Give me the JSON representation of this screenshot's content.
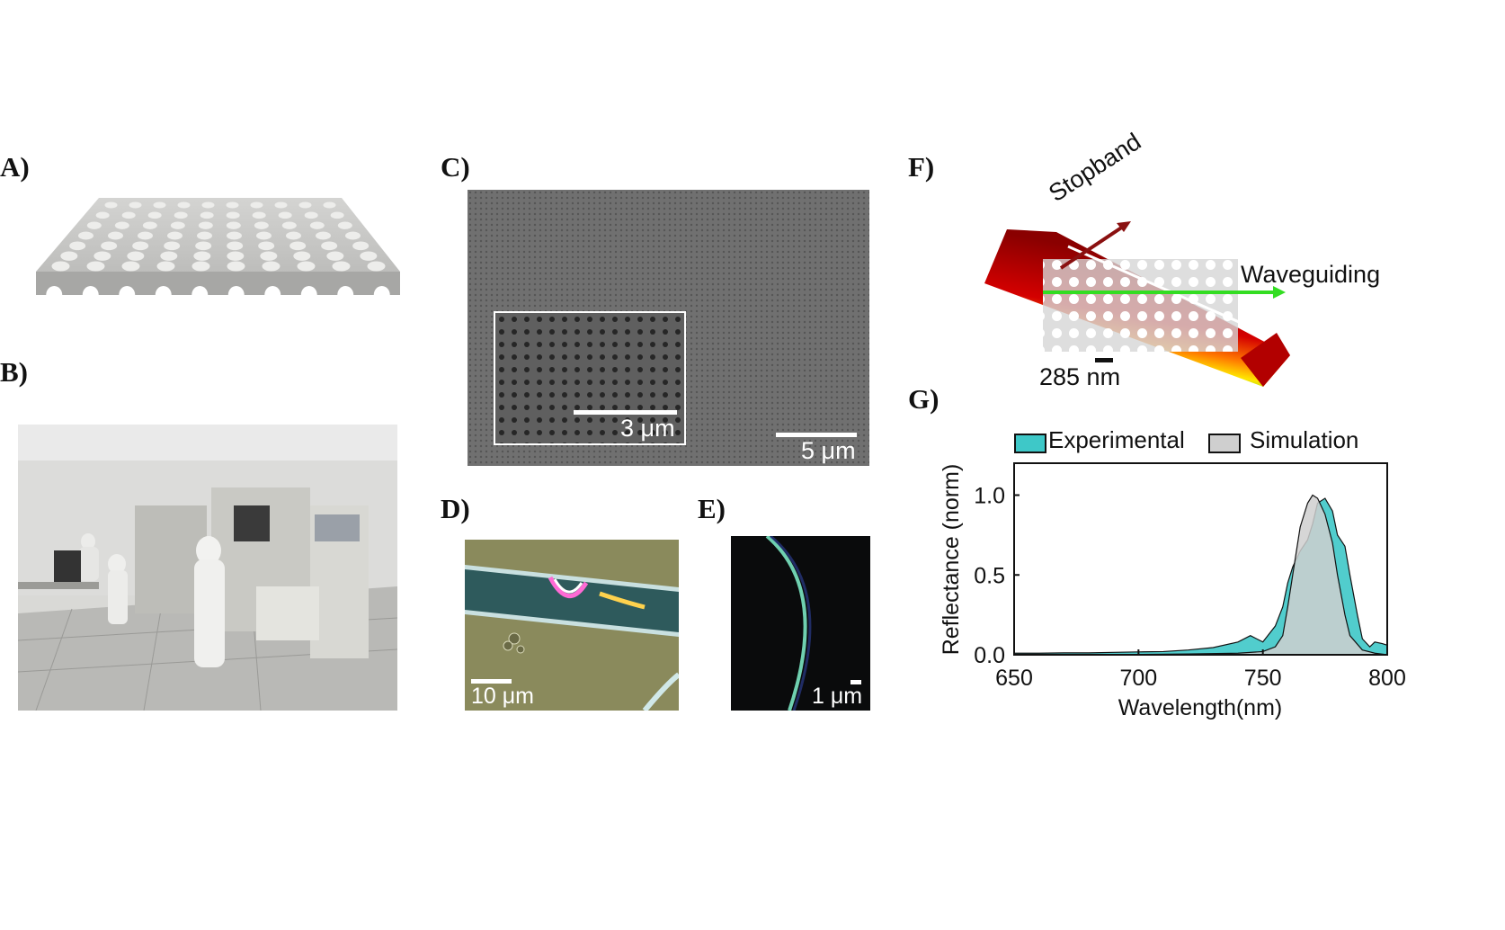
{
  "panels": {
    "a": {
      "label": "A)"
    },
    "b": {
      "label": "B)"
    },
    "c": {
      "label": "C)",
      "scale_main": "5 μm",
      "scale_inset": "3 μm"
    },
    "d": {
      "label": "D)",
      "scale": "10 μm"
    },
    "e": {
      "label": "E)",
      "scale": "1 μm"
    },
    "f": {
      "label": "F)",
      "stopband": "Stopband",
      "waveguiding": "Waveguiding",
      "scale": "285 nm"
    },
    "g": {
      "label": "G)"
    }
  },
  "chart_data": {
    "type": "area",
    "xlabel": "Wavelength(nm)",
    "ylabel": "Reflectance (norm)",
    "xlim": [
      650,
      800
    ],
    "ylim": [
      0,
      1.2
    ],
    "xticks": [
      "650",
      "700",
      "750",
      "800"
    ],
    "yticks": [
      "0.0",
      "0.5",
      "1.0"
    ],
    "legend_position": "top",
    "series": [
      {
        "name": "Experimental",
        "color": "#3ec8c8",
        "x": [
          650,
          660,
          670,
          680,
          690,
          700,
          710,
          720,
          730,
          740,
          745,
          750,
          755,
          758,
          760,
          762,
          765,
          768,
          770,
          772,
          775,
          778,
          780,
          783,
          785,
          788,
          790,
          793,
          795,
          798,
          800
        ],
        "y": [
          0.01,
          0.01,
          0.012,
          0.012,
          0.015,
          0.018,
          0.02,
          0.03,
          0.045,
          0.08,
          0.12,
          0.08,
          0.18,
          0.3,
          0.45,
          0.55,
          0.65,
          0.72,
          0.82,
          0.95,
          0.98,
          0.9,
          0.75,
          0.68,
          0.5,
          0.25,
          0.1,
          0.05,
          0.08,
          0.07,
          0.06
        ]
      },
      {
        "name": "Simulation",
        "color": "#cfcfcf",
        "x": [
          650,
          700,
          720,
          740,
          750,
          755,
          758,
          760,
          763,
          765,
          768,
          770,
          772,
          775,
          778,
          780,
          783,
          785,
          790,
          795,
          800
        ],
        "y": [
          0,
          0.002,
          0.005,
          0.01,
          0.02,
          0.05,
          0.12,
          0.3,
          0.6,
          0.8,
          0.95,
          1.0,
          0.98,
          0.88,
          0.7,
          0.5,
          0.25,
          0.12,
          0.03,
          0.01,
          0.0
        ]
      }
    ]
  }
}
